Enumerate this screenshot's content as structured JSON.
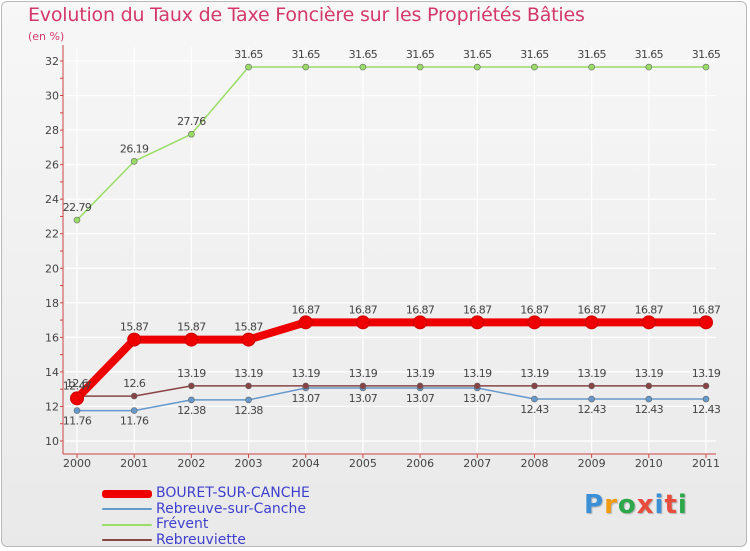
{
  "header": {
    "title": "Evolution du Taux de Taxe Foncière sur les Propriétés Bâties",
    "unit": "(en %)"
  },
  "logo": {
    "text": "Proxiti",
    "colors": [
      "#3a8fd6",
      "#f39c12",
      "#2ca84a",
      "#e74c3c",
      "#3a8fd6",
      "#e74c3c",
      "#2ca84a"
    ]
  },
  "chart_data": {
    "type": "line",
    "title": "Evolution du Taux de Taxe Foncière sur les Propriétés Bâties",
    "ylabel": "(en %)",
    "xlabel": "",
    "x": [
      "2000",
      "2001",
      "2002",
      "2003",
      "2004",
      "2005",
      "2006",
      "2007",
      "2008",
      "2009",
      "2010",
      "2011"
    ],
    "ylim": [
      10,
      32
    ],
    "yticks": [
      10,
      12,
      14,
      16,
      18,
      20,
      22,
      24,
      26,
      28,
      30,
      32
    ],
    "grid": true,
    "legend_position": "bottom-left",
    "series": [
      {
        "name": "BOURET-SUR-CANCHE",
        "color": "#ee0000",
        "values": [
          12.47,
          15.87,
          15.87,
          15.87,
          16.87,
          16.87,
          16.87,
          16.87,
          16.87,
          16.87,
          16.87,
          16.87
        ],
        "labels": [
          "12.47",
          "15.87",
          "15.87",
          "15.87",
          "16.87",
          "16.87",
          "16.87",
          "16.87",
          "16.87",
          "16.87",
          "16.87",
          "16.87"
        ]
      },
      {
        "name": "Rebreuve-sur-Canche",
        "color": "#6699cc",
        "values": [
          11.76,
          11.76,
          12.38,
          12.38,
          13.07,
          13.07,
          13.07,
          13.07,
          12.43,
          12.43,
          12.43,
          12.43
        ],
        "labels": [
          "11.76",
          "11.76",
          "12.38",
          "12.38",
          "13.07",
          "13.07",
          "13.07",
          "13.07",
          "12.43",
          "12.43",
          "12.43",
          "12.43"
        ]
      },
      {
        "name": "Frévent",
        "color": "#99dd66",
        "values": [
          22.79,
          26.19,
          27.76,
          31.65,
          31.65,
          31.65,
          31.65,
          31.65,
          31.65,
          31.65,
          31.65,
          31.65
        ],
        "labels": [
          "22.79",
          "26.19",
          "27.76",
          "31.65",
          "31.65",
          "31.65",
          "31.65",
          "31.65",
          "31.65",
          "31.65",
          "31.65",
          "31.65"
        ]
      },
      {
        "name": "Rebreuviette",
        "color": "#884444",
        "values": [
          12.6,
          12.6,
          13.19,
          13.19,
          13.19,
          13.19,
          13.19,
          13.19,
          13.19,
          13.19,
          13.19,
          13.19
        ],
        "labels": [
          "12.6",
          "12.6",
          "13.19",
          "13.19",
          "13.19",
          "13.19",
          "13.19",
          "13.19",
          "13.19",
          "13.19",
          "13.19",
          "13.19"
        ]
      }
    ]
  }
}
